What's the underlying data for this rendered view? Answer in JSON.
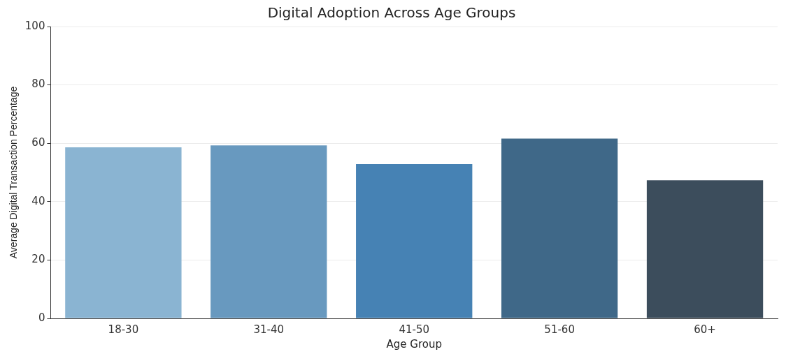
{
  "chart_data": {
    "type": "bar",
    "title": "Digital Adoption Across Age Groups",
    "xlabel": "Age Group",
    "ylabel": "Average Digital Transaction Percentage",
    "categories": [
      "18-30",
      "31-40",
      "41-50",
      "51-60",
      "60+"
    ],
    "values": [
      58.6,
      59.3,
      52.9,
      61.6,
      47.3
    ],
    "colors": [
      "#8ab4d2",
      "#6899bf",
      "#4682b4",
      "#3f6888",
      "#3c4d5c"
    ],
    "ylim": [
      0,
      100
    ],
    "yticks": [
      0,
      20,
      40,
      60,
      80,
      100
    ],
    "grid": "y",
    "legend": false
  }
}
